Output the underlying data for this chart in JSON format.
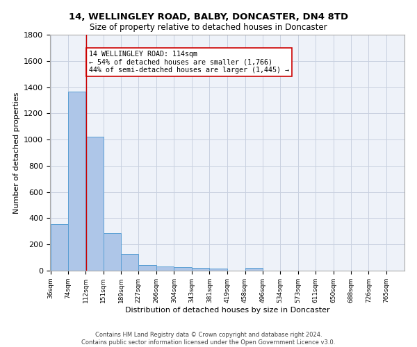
{
  "title": "14, WELLINGLEY ROAD, BALBY, DONCASTER, DN4 8TD",
  "subtitle": "Size of property relative to detached houses in Doncaster",
  "xlabel": "Distribution of detached houses by size in Doncaster",
  "ylabel": "Number of detached properties",
  "bar_edges": [
    36,
    74,
    112,
    151,
    189,
    227,
    266,
    304,
    343,
    381,
    419,
    458,
    496,
    534,
    573,
    611,
    650,
    688,
    726,
    765,
    803
  ],
  "bar_values": [
    355,
    1366,
    1020,
    288,
    127,
    42,
    33,
    27,
    20,
    15,
    0,
    20,
    0,
    0,
    0,
    0,
    0,
    0,
    0,
    0
  ],
  "bar_color": "#aec6e8",
  "bar_edge_color": "#5a9fd4",
  "property_line_x": 114,
  "property_line_color": "#cc0000",
  "annotation_text": "14 WELLINGLEY ROAD: 114sqm\n← 54% of detached houses are smaller (1,766)\n44% of semi-detached houses are larger (1,445) →",
  "annotation_box_color": "#ffffff",
  "annotation_box_edgecolor": "#cc0000",
  "ylim": [
    0,
    1800
  ],
  "yticks": [
    0,
    200,
    400,
    600,
    800,
    1000,
    1200,
    1400,
    1600,
    1800
  ],
  "footer_line1": "Contains HM Land Registry data © Crown copyright and database right 2024.",
  "footer_line2": "Contains public sector information licensed under the Open Government Licence v3.0.",
  "background_color": "#eef2f9",
  "grid_color": "#c8d0e0"
}
